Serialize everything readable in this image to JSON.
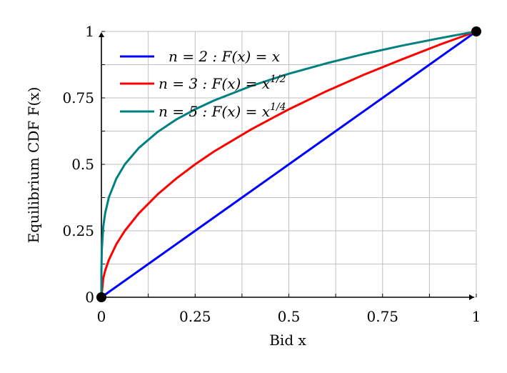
{
  "chart_data": {
    "type": "line",
    "title": "",
    "xlabel": "Bid x",
    "ylabel": "Equilibrium CDF F(x)",
    "xlim": [
      0,
      1
    ],
    "ylim": [
      0,
      1
    ],
    "x_ticks": [
      "0",
      "0.25",
      "0.5",
      "0.75",
      "1"
    ],
    "y_ticks": [
      "0",
      "0.25",
      "0.5",
      "0.75",
      "1"
    ],
    "grid": true,
    "grid_step": 0.125,
    "legend_position": "top-left",
    "series": [
      {
        "name": "n = 2 :  F(x) = x",
        "color": "#0000ff",
        "x": [
          0,
          0.125,
          0.25,
          0.375,
          0.5,
          0.625,
          0.75,
          0.875,
          1
        ],
        "y": [
          0,
          0.125,
          0.25,
          0.375,
          0.5,
          0.625,
          0.75,
          0.875,
          1
        ]
      },
      {
        "name": "n = 3 :  F(x) = x^1/2",
        "color": "#ff0000",
        "x": [
          0,
          0.005,
          0.01,
          0.02,
          0.04,
          0.0625,
          0.1,
          0.15,
          0.2,
          0.25,
          0.3,
          0.4,
          0.5,
          0.6,
          0.7,
          0.8,
          0.9,
          1
        ],
        "y": [
          0,
          0.071,
          0.1,
          0.141,
          0.2,
          0.25,
          0.316,
          0.387,
          0.447,
          0.5,
          0.548,
          0.632,
          0.707,
          0.775,
          0.837,
          0.894,
          0.949,
          1
        ]
      },
      {
        "name": "n = 5 :  F(x) = x^1/4",
        "color": "#008080",
        "x": [
          0,
          0.0001,
          0.001,
          0.005,
          0.01,
          0.02,
          0.04,
          0.0625,
          0.1,
          0.15,
          0.2,
          0.25,
          0.3,
          0.4,
          0.5,
          0.6,
          0.7,
          0.8,
          0.9,
          1
        ],
        "y": [
          0,
          0.1,
          0.178,
          0.266,
          0.316,
          0.376,
          0.447,
          0.5,
          0.562,
          0.622,
          0.669,
          0.707,
          0.74,
          0.795,
          0.841,
          0.88,
          0.915,
          0.946,
          0.974,
          1
        ]
      }
    ],
    "markers": [
      {
        "x": 0,
        "y": 0,
        "color": "#000000"
      },
      {
        "x": 1,
        "y": 1,
        "color": "#000000"
      }
    ]
  }
}
